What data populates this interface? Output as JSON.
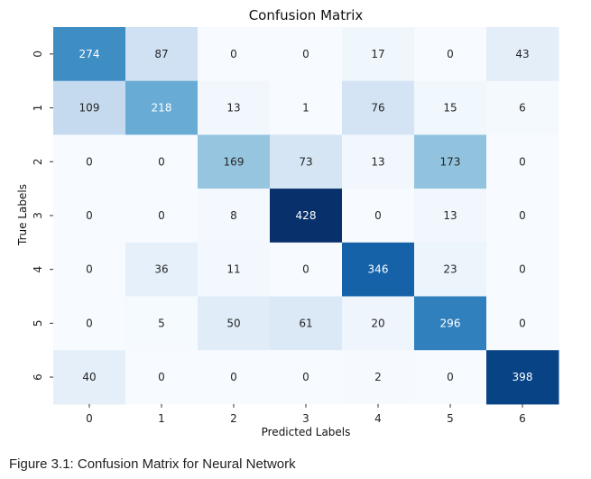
{
  "chart_data": {
    "type": "heatmap",
    "title": "Confusion Matrix",
    "xlabel": "Predicted Labels",
    "ylabel": "True Labels",
    "x_categories": [
      "0",
      "1",
      "2",
      "3",
      "4",
      "5",
      "6"
    ],
    "y_categories": [
      "0",
      "1",
      "2",
      "3",
      "4",
      "5",
      "6"
    ],
    "values": [
      [
        274,
        87,
        0,
        0,
        17,
        0,
        43
      ],
      [
        109,
        218,
        13,
        1,
        76,
        15,
        6
      ],
      [
        0,
        0,
        169,
        73,
        13,
        173,
        0
      ],
      [
        0,
        0,
        8,
        428,
        0,
        13,
        0
      ],
      [
        0,
        36,
        11,
        0,
        346,
        23,
        0
      ],
      [
        0,
        5,
        50,
        61,
        20,
        296,
        0
      ],
      [
        40,
        0,
        0,
        0,
        2,
        0,
        398
      ]
    ],
    "colormap": "Blues",
    "value_range": [
      0,
      428
    ],
    "colorbar": false,
    "grid": false
  },
  "caption": "Figure 3.1: Confusion Matrix for Neural Network"
}
